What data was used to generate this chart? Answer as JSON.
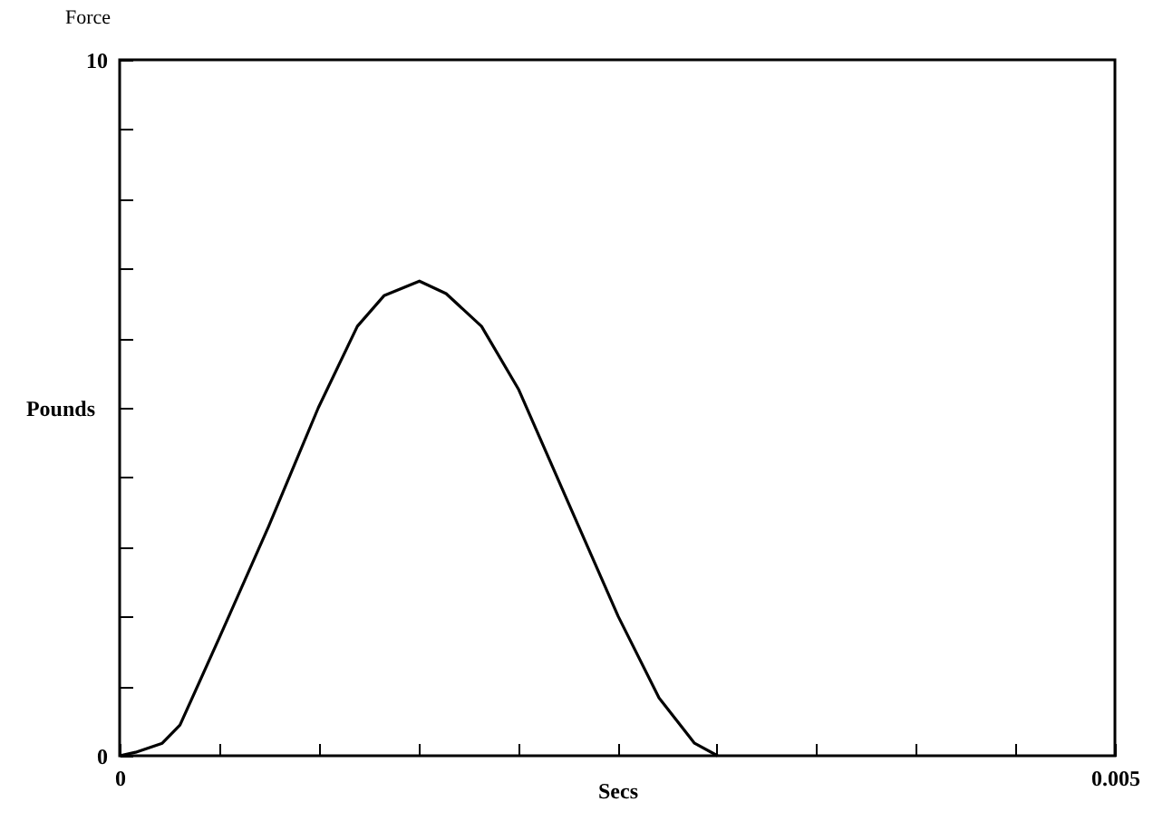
{
  "chart_data": {
    "type": "line",
    "title": "Force",
    "xlabel": "Secs",
    "ylabel": "Pounds",
    "x": [
      0,
      8e-05,
      0.000214,
      0.000303,
      0.0005,
      0.000749,
      0.000998,
      0.001194,
      0.001328,
      0.001506,
      0.00164,
      0.001818,
      0.002005,
      0.002264,
      0.002505,
      0.00271,
      0.002888,
      0.003004
    ],
    "series": [
      {
        "color": "#000000",
        "values": [
          0,
          0.05,
          0.18,
          0.44,
          1.69,
          3.3,
          5.0,
          6.17,
          6.61,
          6.82,
          6.64,
          6.17,
          5.26,
          3.57,
          2.0,
          0.83,
          0.18,
          0
        ]
      }
    ],
    "xlim": [
      0,
      0.005
    ],
    "xticks": [
      0,
      {
        "value": 0.0005,
        "label": null
      },
      {
        "value": 0.001,
        "label": null
      },
      {
        "value": 0.0015,
        "label": null
      },
      {
        "value": 0.002,
        "label": null
      },
      {
        "value": 0.0025,
        "label": null
      },
      {
        "value": 0.003,
        "label": null
      },
      {
        "value": 0.0035,
        "label": null
      },
      {
        "value": 0.004,
        "label": null
      },
      {
        "value": 0.0045,
        "label": null
      },
      0.005
    ],
    "ylim": [
      0,
      10
    ],
    "yticks": [
      0,
      {
        "value": 1,
        "label": null
      },
      {
        "value": 2,
        "label": null
      },
      {
        "value": 3,
        "label": null
      },
      {
        "value": 4,
        "label": null
      },
      {
        "value": 5,
        "label": null
      },
      {
        "value": 6,
        "label": null
      },
      {
        "value": 7,
        "label": null
      },
      {
        "value": 8,
        "label": null
      },
      {
        "value": 9,
        "label": null
      },
      10
    ],
    "grid": false,
    "marker": "none",
    "line_style": "solid"
  }
}
